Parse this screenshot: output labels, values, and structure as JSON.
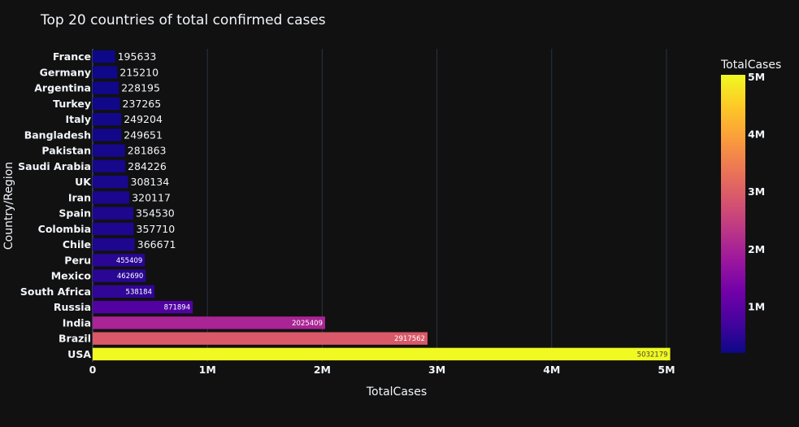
{
  "chart_data": {
    "type": "bar",
    "orientation": "horizontal",
    "title": "Top 20 countries of total confirmed cases",
    "xlabel": "TotalCases",
    "ylabel": "Country/Region",
    "xlim": [
      0,
      5000000
    ],
    "x_ticks": [
      {
        "value": 0,
        "label": "0"
      },
      {
        "value": 1000000,
        "label": "1M"
      },
      {
        "value": 2000000,
        "label": "2M"
      },
      {
        "value": 3000000,
        "label": "3M"
      },
      {
        "value": 4000000,
        "label": "4M"
      },
      {
        "value": 5000000,
        "label": "5M"
      }
    ],
    "grid": true,
    "categories": [
      "France",
      "Germany",
      "Argentina",
      "Turkey",
      "Italy",
      "Bangladesh",
      "Pakistan",
      "Saudi Arabia",
      "UK",
      "Iran",
      "Spain",
      "Colombia",
      "Chile",
      "Peru",
      "Mexico",
      "South Africa",
      "Russia",
      "India",
      "Brazil",
      "USA"
    ],
    "values": [
      195633,
      215210,
      228195,
      237265,
      249204,
      249651,
      281863,
      284226,
      308134,
      320117,
      354530,
      357710,
      366671,
      455409,
      462690,
      538184,
      871894,
      2025409,
      2917562,
      5032179
    ],
    "data_labels": [
      "195633",
      "215210",
      "228195",
      "237265",
      "249204",
      "249651",
      "281863",
      "284226",
      "308134",
      "320117",
      "354530",
      "357710",
      "366671",
      "455409",
      "462690",
      "538184",
      "871894",
      "2025409",
      "2917562",
      "5032179"
    ],
    "colorbar": {
      "title": "TotalCases",
      "range": [
        195633,
        5032179
      ],
      "ticks": [
        {
          "value": 1000000,
          "label": "1M"
        },
        {
          "value": 2000000,
          "label": "2M"
        },
        {
          "value": 3000000,
          "label": "3M"
        },
        {
          "value": 4000000,
          "label": "4M"
        },
        {
          "value": 5000000,
          "label": "5M"
        }
      ],
      "colorscale": [
        "#0d0887",
        "#46039f",
        "#7201a8",
        "#9c179e",
        "#bd3786",
        "#d8576b",
        "#ed7953",
        "#fb9f3a",
        "#fdca26",
        "#f0f921"
      ]
    },
    "colors": {
      "background": "#111111",
      "grid": "#283442",
      "text": "#f2f5fa"
    }
  }
}
